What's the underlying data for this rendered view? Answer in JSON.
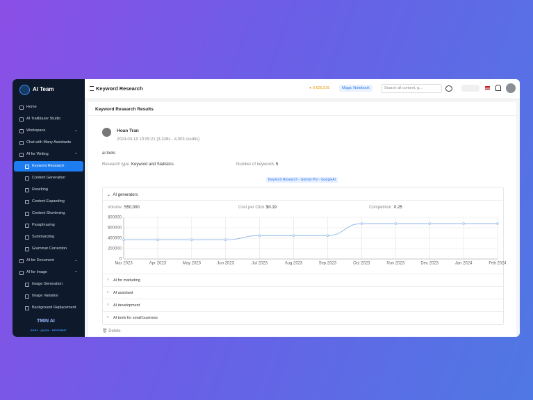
{
  "sidebar": {
    "brand": "AI Team",
    "items": [
      {
        "label": "Home"
      },
      {
        "label": "AI Trailblazer Studio"
      },
      {
        "label": "Workspace",
        "expanded": false
      },
      {
        "label": "Chat with Many Assistants"
      },
      {
        "label": "AI for Writing",
        "expanded": true,
        "children": [
          {
            "label": "Keyword Research",
            "active": true
          },
          {
            "label": "Content Generation"
          },
          {
            "label": "Rewriting"
          },
          {
            "label": "Content Expanding"
          },
          {
            "label": "Content Shortening"
          },
          {
            "label": "Paraphrasing"
          },
          {
            "label": "Summarizing"
          },
          {
            "label": "Grammar Correction"
          }
        ]
      },
      {
        "label": "AI for Document",
        "expanded": false
      },
      {
        "label": "AI for Image",
        "expanded": true,
        "children": [
          {
            "label": "Image Generation"
          },
          {
            "label": "Image Variation"
          },
          {
            "label": "Background Replacement"
          }
        ]
      }
    ],
    "footer_logo": "TMIN AI",
    "footer_tagline": "EASY · QUICK · EFFICIENT"
  },
  "header": {
    "title": "Keyword Research",
    "credits": "9,625,536",
    "notebook": "Magic Notebook",
    "search_placeholder": "Search all content, g..."
  },
  "results": {
    "title": "Keyword Research Results",
    "user": "Hoan Tran",
    "meta": "2024-03-19 10:05:21 (3.326s - 4,003 credits)",
    "query": "ai tools",
    "research_type_label": "Research type :",
    "research_type": "Keyword and Statistics",
    "keyword_count_label": "Number of keywords :",
    "keyword_count": "5",
    "engine": "Keyword Research - Gemini Pro - GoogleAI",
    "open_keyword": "AI generators",
    "volume_label": "Volume :",
    "volume": "550,000",
    "cpc_label": "Cost per Click :",
    "cpc": "$0.19",
    "competition_label": "Competition :",
    "competition": "0.25",
    "other_keywords": [
      "AI for marketing",
      "AI assistant",
      "AI development",
      "AI tools for small business"
    ],
    "delete": "Delete"
  },
  "chart_data": {
    "type": "line",
    "categories": [
      "Mar 2023",
      "Apr 2023",
      "May 2023",
      "Jun 2023",
      "Jul 2023",
      "Aug 2023",
      "Sep 2023",
      "Oct 2023",
      "Nov 2023",
      "Dec 2023",
      "Jan 2024",
      "Feb 2024"
    ],
    "values": [
      370000,
      370000,
      370000,
      370000,
      450000,
      450000,
      450000,
      680000,
      680000,
      680000,
      680000,
      680000
    ],
    "color": "#8fb8ea",
    "ylim": [
      0,
      800000
    ],
    "yticks": [
      0,
      200000,
      400000,
      600000,
      800000
    ],
    "grid": true
  }
}
